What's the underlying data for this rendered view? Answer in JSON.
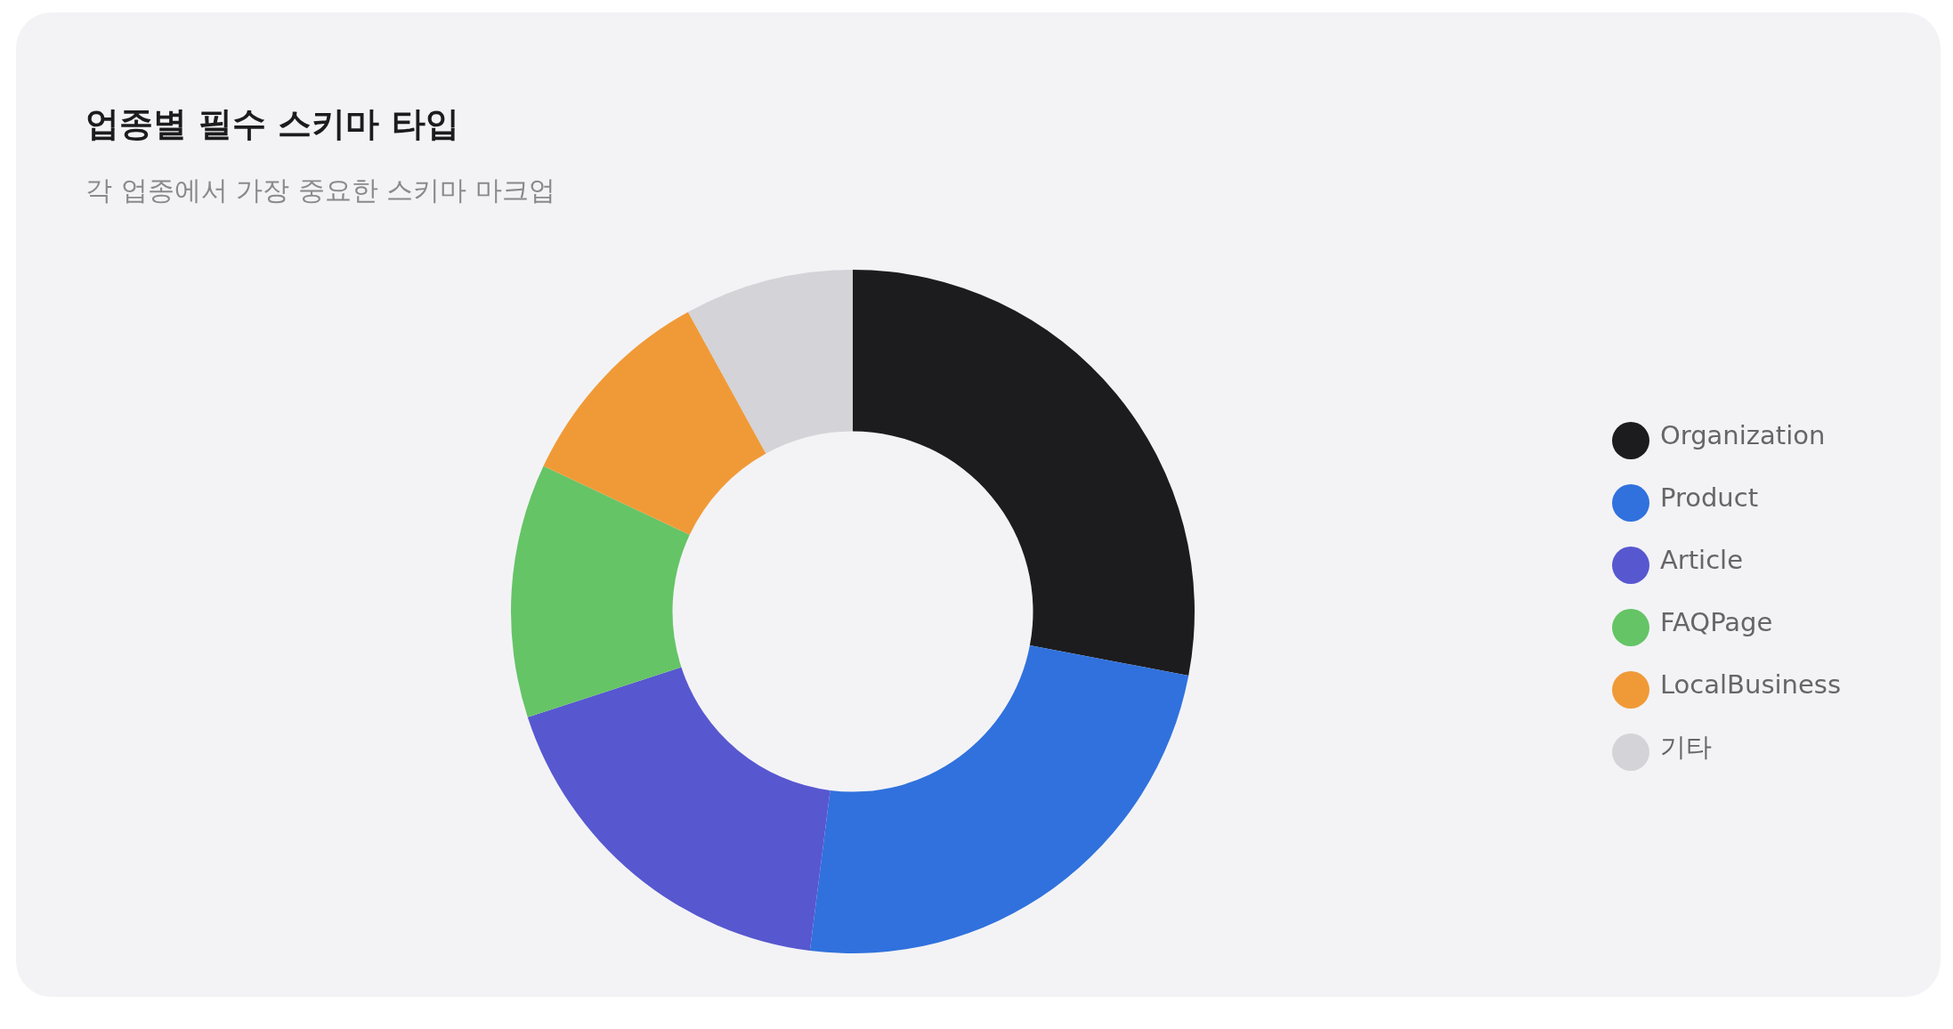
{
  "chart_data": {
    "type": "donut",
    "title": "업종별 필수 스키마 타입",
    "subtitle": "각 업종에서 가장 중요한 스키마 마크업",
    "categories": [
      "Organization",
      "Product",
      "Article",
      "FAQPage",
      "LocalBusiness",
      "기타"
    ],
    "values": [
      28,
      24,
      18,
      12,
      10,
      8
    ],
    "colors": [
      "#1c1c1e",
      "#3071dd",
      "#5757d0",
      "#65c466",
      "#f09a37",
      "#d3d3d8"
    ],
    "legend": "right"
  }
}
